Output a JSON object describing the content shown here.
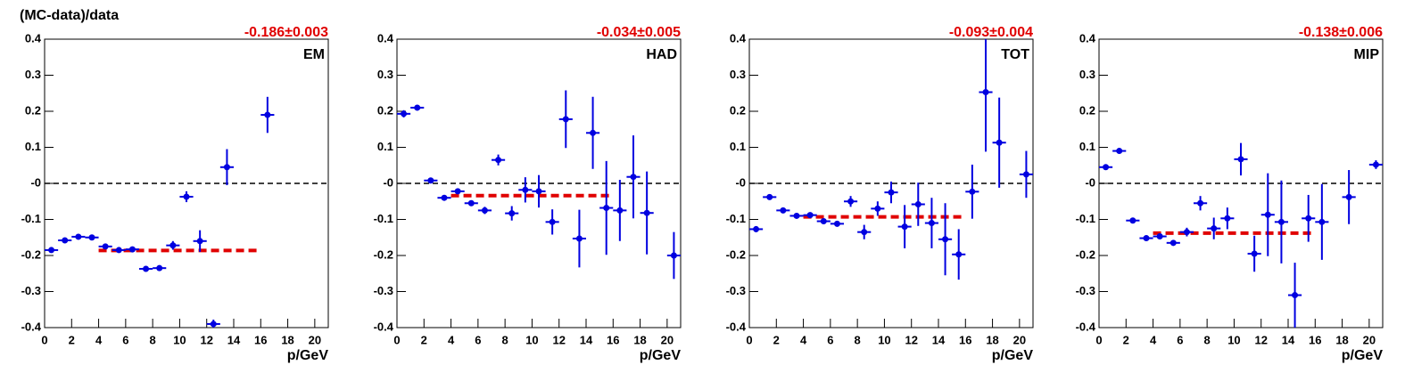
{
  "chart_data": [
    {
      "type": "scatter",
      "y_label": "(MC-data)/data",
      "x_label": "p/GeV",
      "panel_label": "EM",
      "annotation": "-0.186±0.003",
      "x": [
        0.5,
        1.5,
        2.5,
        3.5,
        4.5,
        5.5,
        6.5,
        7.5,
        8.5,
        9.5,
        10.5,
        11.5,
        12.5,
        13.5,
        14.5,
        15.5,
        16.5,
        17.5,
        18.5,
        19.5,
        20.5
      ],
      "values": [
        -0.185,
        -0.158,
        -0.148,
        -0.15,
        -0.175,
        -0.185,
        -0.183,
        -0.237,
        -0.235,
        -0.172,
        -0.037,
        -0.16,
        -0.39,
        0.045,
        null,
        null,
        0.19,
        null,
        null,
        null,
        null
      ],
      "errors": [
        0.004,
        0.004,
        0.004,
        0.004,
        0.005,
        0.005,
        0.005,
        0.006,
        0.007,
        0.012,
        0.015,
        0.03,
        0.012,
        0.05,
        null,
        null,
        0.05,
        null,
        null,
        null,
        null
      ],
      "color": "#0000e0",
      "fit": {
        "x": [
          4,
          16
        ],
        "value": -0.186,
        "color": "#e00000"
      },
      "reference_line": 0,
      "xlim": [
        0,
        21
      ],
      "ylim": [
        -0.4,
        0.4
      ],
      "xticks": [
        0,
        2,
        4,
        6,
        8,
        10,
        12,
        14,
        16,
        18,
        20
      ],
      "yticks": [
        -0.4,
        -0.3,
        -0.2,
        -0.1,
        {
          "value": 0,
          "label": "-0"
        },
        0.1,
        0.2,
        0.3,
        0.4
      ]
    },
    {
      "type": "scatter",
      "x_label": "p/GeV",
      "panel_label": "HAD",
      "annotation": "-0.034±0.005",
      "x": [
        0.5,
        1.5,
        2.5,
        3.5,
        4.5,
        5.5,
        6.5,
        7.5,
        8.5,
        9.5,
        10.5,
        11.5,
        12.5,
        13.5,
        14.5,
        15.5,
        16.5,
        17.5,
        18.5,
        19.5,
        20.5
      ],
      "values": [
        0.193,
        0.21,
        0.008,
        -0.04,
        -0.022,
        -0.055,
        -0.075,
        0.065,
        -0.083,
        -0.018,
        -0.022,
        -0.107,
        0.178,
        -0.153,
        0.14,
        -0.068,
        -0.075,
        0.018,
        -0.082,
        null,
        -0.2
      ],
      "errors": [
        0.01,
        0.005,
        0.005,
        0.005,
        0.006,
        0.007,
        0.01,
        0.015,
        0.02,
        0.035,
        0.045,
        0.035,
        0.08,
        0.08,
        0.1,
        0.13,
        0.085,
        0.115,
        0.115,
        null,
        0.065
      ],
      "color": "#0000e0",
      "fit": {
        "x": [
          4,
          16
        ],
        "value": -0.034,
        "color": "#e00000"
      },
      "reference_line": 0,
      "xlim": [
        0,
        21
      ],
      "ylim": [
        -0.4,
        0.4
      ],
      "xticks": [
        0,
        2,
        4,
        6,
        8,
        10,
        12,
        14,
        16,
        18,
        20
      ],
      "yticks": [
        -0.4,
        -0.3,
        -0.2,
        -0.1,
        {
          "value": 0,
          "label": "-0"
        },
        0.1,
        0.2,
        0.3,
        0.4
      ]
    },
    {
      "type": "scatter",
      "x_label": "p/GeV",
      "panel_label": "TOT",
      "annotation": "-0.093±0.004",
      "x": [
        0.5,
        1.5,
        2.5,
        3.5,
        4.5,
        5.5,
        6.5,
        7.5,
        8.5,
        9.5,
        10.5,
        11.5,
        12.5,
        13.5,
        14.5,
        15.5,
        16.5,
        17.5,
        18.5,
        19.5,
        20.5
      ],
      "values": [
        -0.127,
        -0.038,
        -0.075,
        -0.09,
        -0.088,
        -0.105,
        -0.112,
        -0.05,
        -0.135,
        -0.07,
        -0.025,
        -0.12,
        -0.058,
        -0.11,
        -0.155,
        -0.197,
        -0.023,
        0.253,
        0.113,
        null,
        0.025
      ],
      "errors": [
        0.008,
        0.005,
        0.005,
        0.005,
        0.006,
        0.007,
        0.008,
        0.015,
        0.02,
        0.02,
        0.03,
        0.06,
        0.06,
        0.07,
        0.1,
        0.07,
        0.075,
        0.165,
        0.125,
        null,
        0.065
      ],
      "color": "#0000e0",
      "fit": {
        "x": [
          4,
          16
        ],
        "value": -0.093,
        "color": "#e00000"
      },
      "reference_line": 0,
      "xlim": [
        0,
        21
      ],
      "ylim": [
        -0.4,
        0.4
      ],
      "xticks": [
        0,
        2,
        4,
        6,
        8,
        10,
        12,
        14,
        16,
        18,
        20
      ],
      "yticks": [
        -0.4,
        -0.3,
        -0.2,
        -0.1,
        {
          "value": 0,
          "label": "-0"
        },
        0.1,
        0.2,
        0.3,
        0.4
      ]
    },
    {
      "type": "scatter",
      "x_label": "p/GeV",
      "panel_label": "MIP",
      "annotation": "-0.138±0.006",
      "x": [
        0.5,
        1.5,
        2.5,
        3.5,
        4.5,
        5.5,
        6.5,
        7.5,
        8.5,
        9.5,
        10.5,
        11.5,
        12.5,
        13.5,
        14.5,
        15.5,
        16.5,
        17.5,
        18.5,
        19.5,
        20.5
      ],
      "values": [
        0.045,
        0.09,
        -0.103,
        -0.152,
        -0.147,
        -0.165,
        -0.135,
        -0.055,
        -0.125,
        -0.097,
        0.067,
        -0.195,
        -0.087,
        -0.107,
        -0.31,
        -0.097,
        -0.107,
        null,
        -0.038,
        null,
        0.052
      ],
      "errors": [
        0.008,
        0.005,
        0.005,
        0.005,
        0.007,
        0.008,
        0.012,
        0.02,
        0.03,
        0.03,
        0.045,
        0.05,
        0.115,
        0.115,
        0.09,
        0.065,
        0.105,
        null,
        0.075,
        null,
        0.012
      ],
      "color": "#0000e0",
      "fit": {
        "x": [
          4,
          16
        ],
        "value": -0.138,
        "color": "#e00000"
      },
      "reference_line": 0,
      "xlim": [
        0,
        21
      ],
      "ylim": [
        -0.4,
        0.4
      ],
      "xticks": [
        0,
        2,
        4,
        6,
        8,
        10,
        12,
        14,
        16,
        18,
        20
      ],
      "yticks": [
        -0.4,
        -0.3,
        -0.2,
        -0.1,
        {
          "value": 0,
          "label": "-0"
        },
        0.1,
        0.2,
        0.3,
        0.4
      ]
    }
  ]
}
